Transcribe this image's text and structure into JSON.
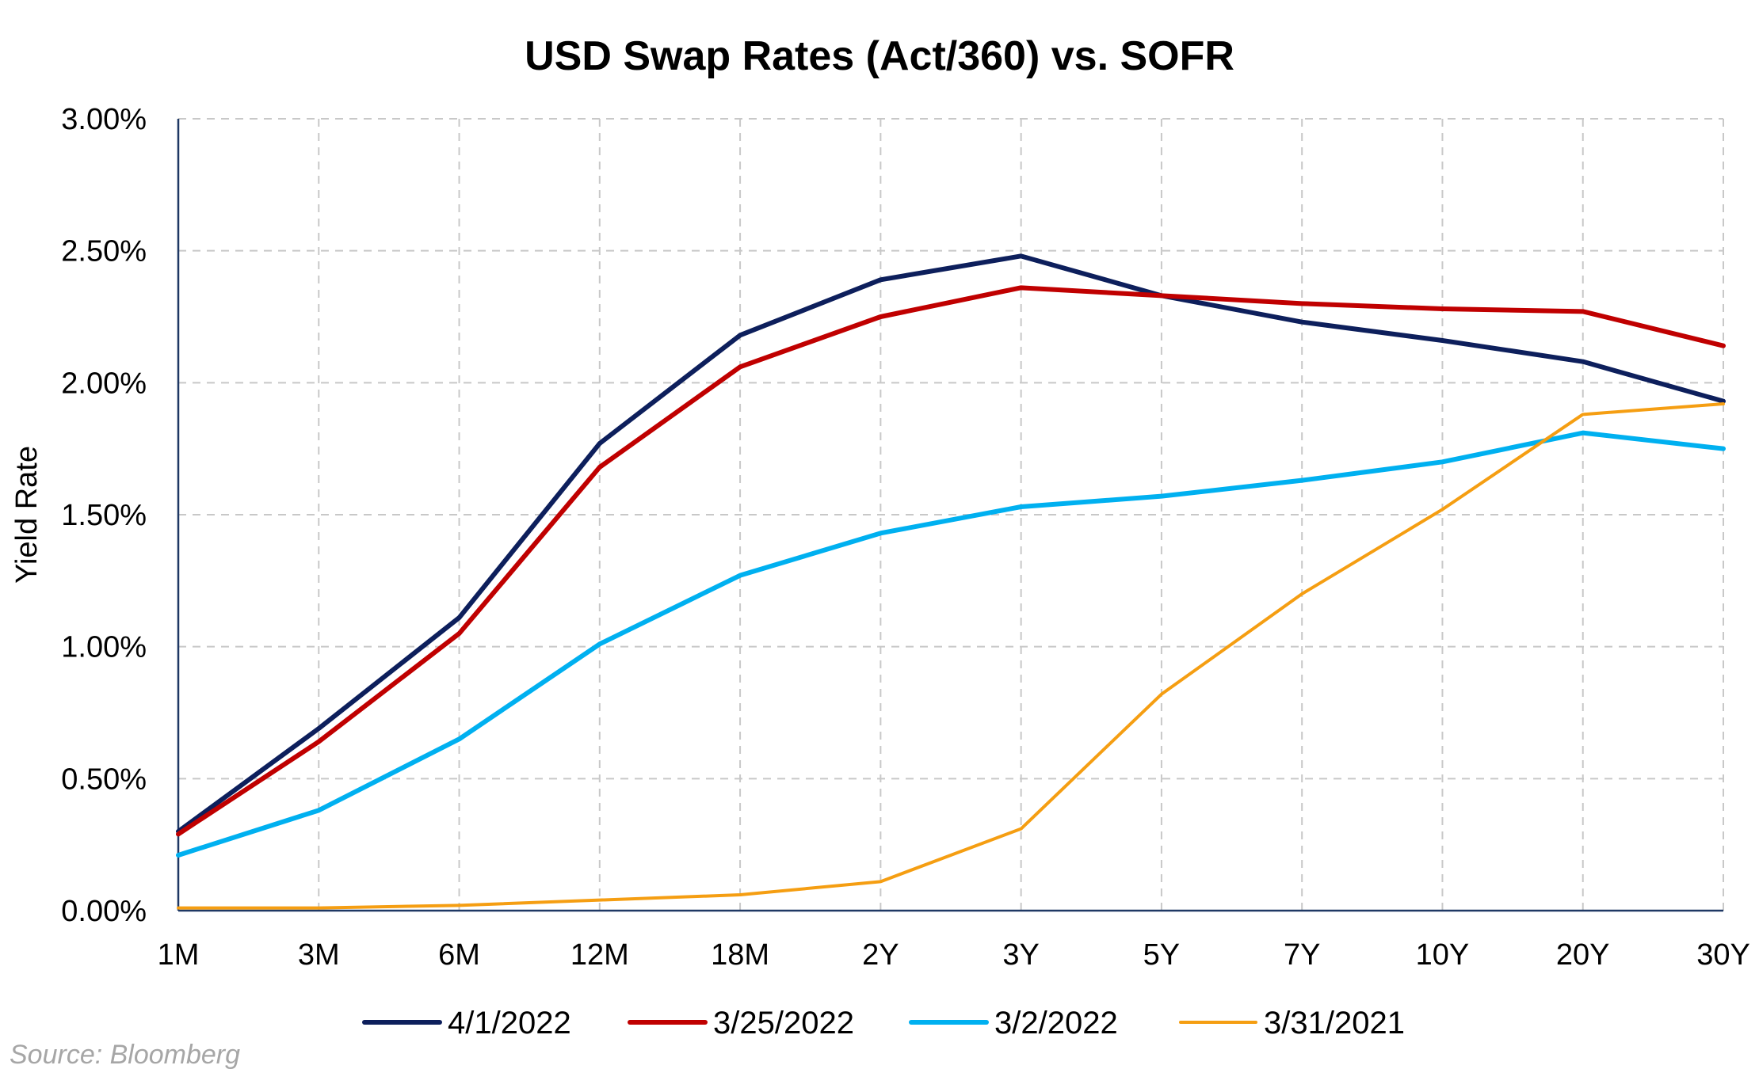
{
  "chart_data": {
    "type": "line",
    "title": "USD Swap Rates (Act/360) vs. SOFR",
    "ylabel": "Yield Rate",
    "xlabel": "",
    "categories": [
      "1M",
      "3M",
      "6M",
      "12M",
      "18M",
      "2Y",
      "3Y",
      "5Y",
      "7Y",
      "10Y",
      "20Y",
      "30Y"
    ],
    "ylim": [
      0,
      3.0
    ],
    "yticks": [
      0,
      0.5,
      1.0,
      1.5,
      2.0,
      2.5,
      3.0
    ],
    "ytick_labels": [
      "0.00%",
      "0.50%",
      "1.00%",
      "1.50%",
      "2.00%",
      "2.50%",
      "3.00%"
    ],
    "grid": true,
    "legend_position": "bottom",
    "series": [
      {
        "name": "4/1/2022",
        "color": "#0d1f5c",
        "width": 6,
        "values": [
          0.3,
          0.69,
          1.11,
          1.77,
          2.18,
          2.39,
          2.48,
          2.33,
          2.23,
          2.16,
          2.08,
          1.93
        ]
      },
      {
        "name": "3/25/2022",
        "color": "#c00000",
        "width": 6,
        "values": [
          0.29,
          0.64,
          1.05,
          1.68,
          2.06,
          2.25,
          2.36,
          2.33,
          2.3,
          2.28,
          2.27,
          2.14
        ]
      },
      {
        "name": "3/2/2022",
        "color": "#00b0f0",
        "width": 6,
        "values": [
          0.21,
          0.38,
          0.65,
          1.01,
          1.27,
          1.43,
          1.53,
          1.57,
          1.63,
          1.7,
          1.81,
          1.75
        ]
      },
      {
        "name": "3/31/2021",
        "color": "#f59e12",
        "width": 4,
        "values": [
          0.01,
          0.01,
          0.02,
          0.04,
          0.06,
          0.11,
          0.31,
          0.82,
          1.2,
          1.52,
          1.88,
          1.92
        ]
      }
    ]
  },
  "source": "Source: Bloomberg"
}
